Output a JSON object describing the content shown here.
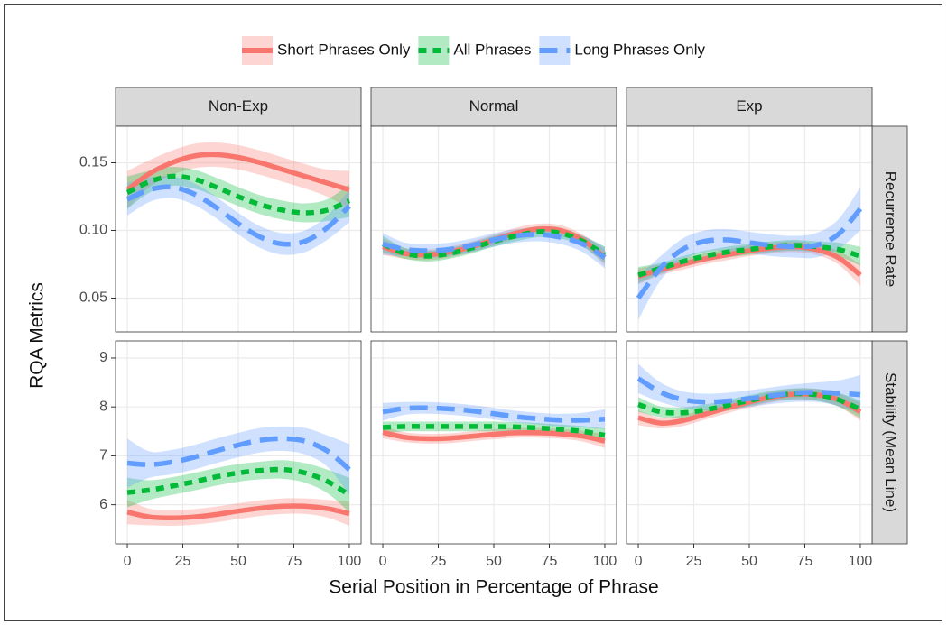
{
  "chart_data": {
    "type": "line",
    "xlabel": "Serial Position in Percentage of Phrase",
    "ylabel": "RQA Metrics",
    "grid": true,
    "legend": "top",
    "series": [
      {
        "name": "Short Phrases Only",
        "color": "#f8766d",
        "dash": "solid"
      },
      {
        "name": "All Phrases",
        "color": "#00ba38",
        "dash": "dotted"
      },
      {
        "name": "Long Phrases Only",
        "color": "#619cff",
        "dash": "dashed"
      }
    ],
    "columns": [
      "Non-Exp",
      "Normal",
      "Exp"
    ],
    "rows": [
      {
        "label": "Recurrence Rate",
        "ylim": [
          0.025,
          0.177
        ],
        "yticks": [
          0.05,
          {
            "value": 0.1,
            "label": "0.10"
          },
          0.15
        ]
      },
      {
        "label": "Stability (Mean Line)",
        "ylim": [
          5.2,
          9.35
        ],
        "yticks": [
          6,
          7,
          8,
          9
        ]
      }
    ],
    "x": [
      0,
      10,
      20,
      30,
      40,
      50,
      60,
      70,
      80,
      90,
      100
    ],
    "xlim": [
      -5.3,
      105.3
    ],
    "xticks": [
      0,
      25,
      50,
      75,
      100
    ],
    "panels": [
      {
        "series": [
          {
            "values": [
              0.13,
              0.142,
              0.15,
              0.155,
              0.156,
              0.154,
              0.15,
              0.145,
              0.14,
              0.135,
              0.13
            ],
            "lower": [
              0.116,
              0.132,
              0.141,
              0.146,
              0.147,
              0.145,
              0.141,
              0.136,
              0.131,
              0.125,
              0.116
            ],
            "upper": [
              0.144,
              0.152,
              0.159,
              0.164,
              0.165,
              0.163,
              0.159,
              0.154,
              0.149,
              0.145,
              0.144
            ]
          },
          {
            "values": [
              0.128,
              0.136,
              0.14,
              0.138,
              0.132,
              0.125,
              0.119,
              0.115,
              0.113,
              0.115,
              0.122
            ],
            "lower": [
              0.116,
              0.128,
              0.133,
              0.131,
              0.125,
              0.118,
              0.112,
              0.108,
              0.106,
              0.107,
              0.11
            ],
            "upper": [
              0.14,
              0.144,
              0.147,
              0.145,
              0.139,
              0.132,
              0.126,
              0.122,
              0.12,
              0.123,
              0.134
            ]
          },
          {
            "values": [
              0.123,
              0.13,
              0.132,
              0.127,
              0.117,
              0.105,
              0.095,
              0.09,
              0.092,
              0.102,
              0.118
            ],
            "lower": [
              0.111,
              0.121,
              0.124,
              0.119,
              0.109,
              0.097,
              0.087,
              0.082,
              0.084,
              0.093,
              0.106
            ],
            "upper": [
              0.135,
              0.139,
              0.14,
              0.135,
              0.125,
              0.113,
              0.103,
              0.098,
              0.1,
              0.111,
              0.13
            ]
          }
        ]
      },
      {
        "series": [
          {
            "values": [
              0.088,
              0.083,
              0.082,
              0.084,
              0.088,
              0.093,
              0.098,
              0.101,
              0.1,
              0.093,
              0.08
            ],
            "lower": [
              0.082,
              0.079,
              0.078,
              0.08,
              0.084,
              0.089,
              0.094,
              0.097,
              0.096,
              0.089,
              0.074
            ],
            "upper": [
              0.094,
              0.087,
              0.086,
              0.088,
              0.092,
              0.097,
              0.102,
              0.105,
              0.104,
              0.097,
              0.086
            ]
          },
          {
            "values": [
              0.09,
              0.083,
              0.081,
              0.083,
              0.087,
              0.092,
              0.096,
              0.099,
              0.098,
              0.092,
              0.082
            ],
            "lower": [
              0.084,
              0.079,
              0.077,
              0.079,
              0.083,
              0.088,
              0.092,
              0.095,
              0.094,
              0.088,
              0.076
            ],
            "upper": [
              0.096,
              0.087,
              0.085,
              0.087,
              0.091,
              0.096,
              0.1,
              0.103,
              0.102,
              0.096,
              0.088
            ]
          },
          {
            "values": [
              0.09,
              0.086,
              0.085,
              0.086,
              0.089,
              0.093,
              0.096,
              0.097,
              0.095,
              0.09,
              0.08
            ],
            "lower": [
              0.082,
              0.081,
              0.08,
              0.081,
              0.084,
              0.088,
              0.091,
              0.092,
              0.09,
              0.084,
              0.072
            ],
            "upper": [
              0.098,
              0.091,
              0.09,
              0.091,
              0.094,
              0.098,
              0.101,
              0.102,
              0.1,
              0.096,
              0.088
            ]
          }
        ]
      },
      {
        "series": [
          {
            "values": [
              0.066,
              0.071,
              0.075,
              0.079,
              0.082,
              0.085,
              0.087,
              0.088,
              0.086,
              0.08,
              0.067
            ],
            "lower": [
              0.06,
              0.067,
              0.071,
              0.075,
              0.078,
              0.081,
              0.083,
              0.084,
              0.082,
              0.075,
              0.059
            ],
            "upper": [
              0.072,
              0.075,
              0.079,
              0.083,
              0.086,
              0.089,
              0.091,
              0.092,
              0.09,
              0.085,
              0.075
            ]
          },
          {
            "values": [
              0.067,
              0.072,
              0.077,
              0.081,
              0.084,
              0.086,
              0.088,
              0.089,
              0.088,
              0.086,
              0.081
            ],
            "lower": [
              0.061,
              0.068,
              0.073,
              0.077,
              0.08,
              0.082,
              0.084,
              0.085,
              0.084,
              0.081,
              0.074
            ],
            "upper": [
              0.073,
              0.076,
              0.081,
              0.085,
              0.088,
              0.09,
              0.092,
              0.093,
              0.092,
              0.091,
              0.088
            ]
          },
          {
            "values": [
              0.05,
              0.072,
              0.086,
              0.092,
              0.093,
              0.091,
              0.089,
              0.088,
              0.089,
              0.097,
              0.116
            ],
            "lower": [
              0.034,
              0.063,
              0.078,
              0.084,
              0.085,
              0.083,
              0.081,
              0.08,
              0.08,
              0.086,
              0.1
            ],
            "upper": [
              0.066,
              0.081,
              0.094,
              0.1,
              0.101,
              0.099,
              0.097,
              0.096,
              0.098,
              0.108,
              0.132
            ]
          }
        ]
      },
      {
        "series": [
          {
            "values": [
              5.85,
              5.75,
              5.73,
              5.75,
              5.8,
              5.87,
              5.93,
              5.97,
              5.97,
              5.92,
              5.82
            ],
            "lower": [
              5.6,
              5.58,
              5.57,
              5.59,
              5.64,
              5.71,
              5.77,
              5.81,
              5.81,
              5.74,
              5.57
            ],
            "upper": [
              6.1,
              5.92,
              5.89,
              5.91,
              5.96,
              6.03,
              6.09,
              6.13,
              6.13,
              6.1,
              6.07
            ]
          },
          {
            "values": [
              6.25,
              6.3,
              6.38,
              6.47,
              6.57,
              6.65,
              6.7,
              6.72,
              6.65,
              6.48,
              6.2
            ],
            "lower": [
              5.95,
              6.1,
              6.2,
              6.29,
              6.39,
              6.47,
              6.52,
              6.53,
              6.45,
              6.24,
              5.85
            ],
            "upper": [
              6.55,
              6.5,
              6.56,
              6.65,
              6.75,
              6.83,
              6.88,
              6.91,
              6.85,
              6.72,
              6.55
            ]
          },
          {
            "values": [
              6.85,
              6.82,
              6.87,
              6.97,
              7.1,
              7.22,
              7.32,
              7.35,
              7.3,
              7.1,
              6.72
            ],
            "lower": [
              6.35,
              6.55,
              6.62,
              6.72,
              6.85,
              6.97,
              7.07,
              7.1,
              7.03,
              6.78,
              6.2
            ],
            "upper": [
              7.35,
              7.09,
              7.12,
              7.22,
              7.35,
              7.47,
              7.57,
              7.6,
              7.57,
              7.42,
              7.24
            ]
          }
        ]
      },
      {
        "series": [
          {
            "values": [
              7.48,
              7.38,
              7.35,
              7.36,
              7.4,
              7.44,
              7.47,
              7.47,
              7.45,
              7.4,
              7.3
            ],
            "lower": [
              7.36,
              7.28,
              7.25,
              7.26,
              7.3,
              7.34,
              7.37,
              7.37,
              7.35,
              7.29,
              7.16
            ],
            "upper": [
              7.6,
              7.48,
              7.45,
              7.46,
              7.5,
              7.54,
              7.57,
              7.57,
              7.55,
              7.51,
              7.44
            ]
          },
          {
            "values": [
              7.58,
              7.6,
              7.6,
              7.6,
              7.6,
              7.6,
              7.59,
              7.57,
              7.54,
              7.5,
              7.42
            ],
            "lower": [
              7.46,
              7.5,
              7.5,
              7.5,
              7.5,
              7.5,
              7.49,
              7.47,
              7.44,
              7.39,
              7.28
            ],
            "upper": [
              7.7,
              7.7,
              7.7,
              7.7,
              7.7,
              7.7,
              7.69,
              7.67,
              7.64,
              7.61,
              7.56
            ]
          },
          {
            "values": [
              7.9,
              7.97,
              7.98,
              7.96,
              7.92,
              7.86,
              7.8,
              7.76,
              7.73,
              7.73,
              7.75
            ],
            "lower": [
              7.72,
              7.84,
              7.86,
              7.84,
              7.8,
              7.74,
              7.68,
              7.64,
              7.6,
              7.58,
              7.55
            ],
            "upper": [
              8.08,
              8.1,
              8.1,
              8.08,
              8.04,
              7.98,
              7.92,
              7.88,
              7.86,
              7.88,
              7.95
            ]
          }
        ]
      },
      {
        "series": [
          {
            "values": [
              7.78,
              7.67,
              7.72,
              7.85,
              7.98,
              8.1,
              8.2,
              8.26,
              8.25,
              8.15,
              7.9
            ],
            "lower": [
              7.63,
              7.56,
              7.61,
              7.74,
              7.87,
              7.99,
              8.09,
              8.15,
              8.13,
              8.01,
              7.72
            ],
            "upper": [
              7.93,
              7.78,
              7.83,
              7.96,
              8.09,
              8.21,
              8.31,
              8.37,
              8.37,
              8.29,
              8.08
            ]
          },
          {
            "values": [
              8.05,
              7.9,
              7.88,
              7.94,
              8.03,
              8.13,
              8.22,
              8.27,
              8.25,
              8.15,
              7.95
            ],
            "lower": [
              7.9,
              7.79,
              7.77,
              7.83,
              7.92,
              8.02,
              8.11,
              8.16,
              8.13,
              8.01,
              7.77
            ],
            "upper": [
              8.2,
              8.01,
              7.99,
              8.05,
              8.14,
              8.24,
              8.33,
              8.38,
              8.37,
              8.29,
              8.13
            ]
          },
          {
            "values": [
              8.58,
              8.3,
              8.15,
              8.1,
              8.12,
              8.17,
              8.23,
              8.28,
              8.3,
              8.28,
              8.25
            ],
            "lower": [
              8.28,
              8.1,
              7.98,
              7.93,
              7.95,
              8.0,
              8.06,
              8.1,
              8.1,
              8.02,
              7.85
            ],
            "upper": [
              8.88,
              8.5,
              8.32,
              8.27,
              8.29,
              8.34,
              8.4,
              8.46,
              8.5,
              8.54,
              8.65
            ]
          }
        ]
      }
    ]
  }
}
